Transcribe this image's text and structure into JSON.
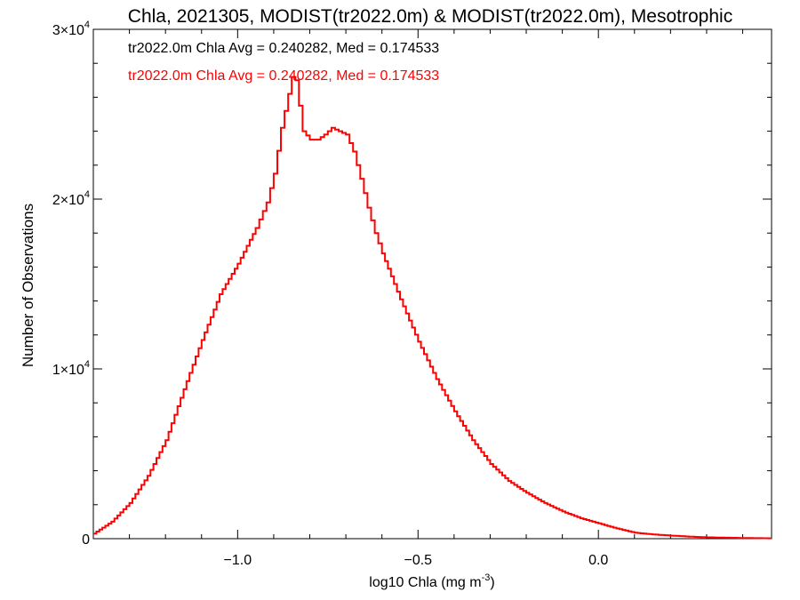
{
  "chart_data": {
    "type": "line",
    "title": "Chla, 2021305, MODIST(tr2022.0m) & MODIST(tr2022.0m), Mesotrophic",
    "xlabel": "log10 Chla (mg m",
    "xlabel_exp": "-3",
    "xlabel_close": ")",
    "ylabel": "Number of Observations",
    "xlim": [
      -1.4,
      0.48
    ],
    "ylim": [
      0,
      30000
    ],
    "x_ticks": [
      {
        "value": -1.0,
        "label": "−1.0"
      },
      {
        "value": -0.5,
        "label": "−0.5"
      },
      {
        "value": 0.0,
        "label": "0.0"
      }
    ],
    "y_ticks": [
      {
        "value": 0,
        "label": "0",
        "exp": ""
      },
      {
        "value": 10000,
        "label": "1×10",
        "exp": "4"
      },
      {
        "value": 20000,
        "label": "2×10",
        "exp": "4"
      },
      {
        "value": 30000,
        "label": "3×10",
        "exp": "4"
      }
    ],
    "annotations": [
      {
        "text": "tr2022.0m Chla Avg = 0.240282, Med = 0.174533",
        "color": "#000000"
      },
      {
        "text": "tr2022.0m Chla Avg = 0.240282, Med = 0.174533",
        "color": "#ff0000"
      }
    ],
    "series": [
      {
        "color": "#ff0000",
        "x": [
          -1.4,
          -1.35,
          -1.3,
          -1.25,
          -1.2,
          -1.15,
          -1.1,
          -1.05,
          -1.0,
          -0.95,
          -0.92,
          -0.9,
          -0.88,
          -0.86,
          -0.85,
          -0.84,
          -0.83,
          -0.82,
          -0.8,
          -0.78,
          -0.76,
          -0.74,
          -0.72,
          -0.7,
          -0.68,
          -0.66,
          -0.64,
          -0.62,
          -0.6,
          -0.55,
          -0.5,
          -0.45,
          -0.4,
          -0.35,
          -0.3,
          -0.25,
          -0.2,
          -0.15,
          -0.1,
          -0.05,
          0.0,
          0.05,
          0.1,
          0.15,
          0.2,
          0.25,
          0.3,
          0.35,
          0.4,
          0.48
        ],
        "values": [
          300,
          1000,
          2100,
          3700,
          5800,
          8800,
          11700,
          14400,
          16200,
          18300,
          19800,
          21500,
          24200,
          26200,
          27200,
          27000,
          25500,
          24000,
          23500,
          23500,
          23800,
          24200,
          24000,
          23800,
          22800,
          21200,
          19500,
          18000,
          16800,
          14100,
          11600,
          9400,
          7500,
          5800,
          4400,
          3400,
          2700,
          2100,
          1600,
          1200,
          900,
          600,
          350,
          250,
          180,
          120,
          80,
          60,
          40,
          20
        ]
      }
    ]
  }
}
